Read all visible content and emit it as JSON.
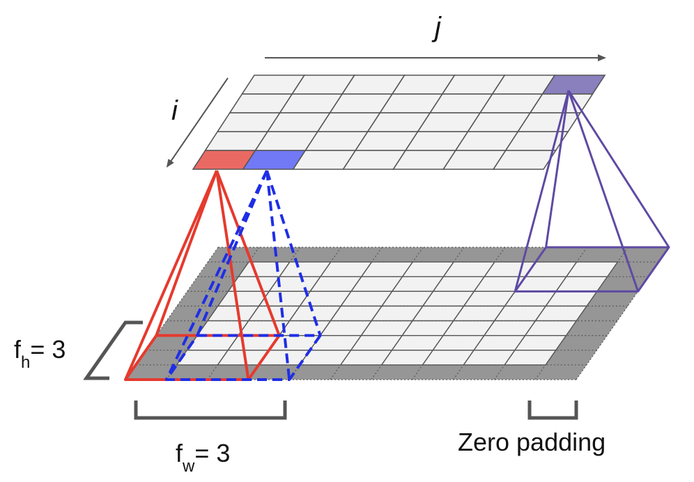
{
  "labels": {
    "axis_j": "j",
    "axis_i": "i",
    "filter_height_main": "f",
    "filter_height_sub": "h",
    "filter_height_value": "= 3",
    "filter_width_main": "f",
    "filter_width_sub": "w",
    "filter_width_value": "= 3",
    "zero_padding": "Zero padding"
  },
  "grids": {
    "output_layer": {
      "rows": 5,
      "cols": 7
    },
    "input_layer": {
      "rows": 7,
      "cols": 9,
      "padded_rows": 9,
      "padded_cols": 11
    }
  },
  "filter": {
    "height": 3,
    "width": 3
  },
  "colors": {
    "grid_line": "#555555",
    "cell_fill": "#f2f2f2",
    "padding_fill": "#969696",
    "red_filter": "#e53a2e",
    "red_cell": "#ea6a63",
    "blue_filter": "#1f2ee6",
    "blue_cell": "#7179f5",
    "purple_filter": "#5e4aa3",
    "purple_cell": "#8a80bd",
    "purple_dark": "#3d2c85",
    "bracket": "#555555"
  }
}
